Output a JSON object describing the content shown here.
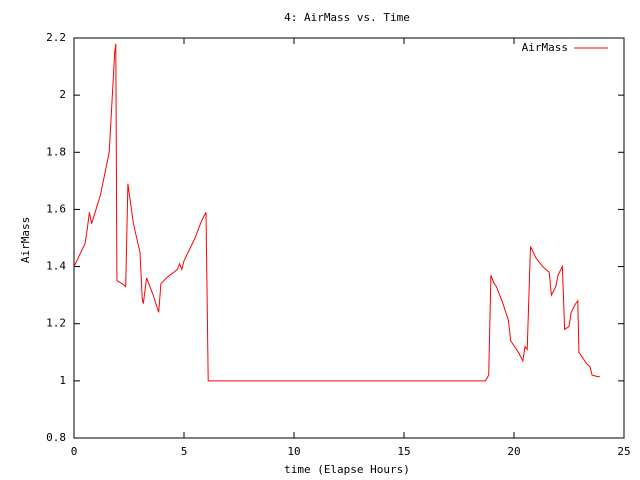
{
  "chart_data": {
    "type": "line",
    "title": "4: AirMass vs. Time",
    "xlabel": "time (Elapse Hours)",
    "ylabel": "AirMass",
    "xlim": [
      0,
      25
    ],
    "xticks": [
      0,
      5,
      10,
      15,
      20,
      25
    ],
    "ylim": [
      0.8,
      2.2
    ],
    "yticks": [
      0.8,
      1,
      1.2,
      1.4,
      1.6,
      1.8,
      2,
      2.2
    ],
    "legend": "top-right",
    "x": [
      0,
      0.5,
      0.6,
      0.7,
      0.8,
      1.0,
      1.2,
      1.6,
      1.85,
      1.9,
      1.95,
      2.2,
      2.35,
      2.45,
      2.7,
      3.0,
      3.1,
      3.15,
      3.3,
      3.6,
      3.85,
      3.95,
      4.2,
      4.7,
      4.8,
      4.9,
      5.0,
      5.5,
      5.8,
      6.0,
      6.1,
      18.7,
      18.85,
      18.95,
      19.1,
      19.2,
      19.5,
      19.75,
      19.85,
      20.2,
      20.4,
      20.5,
      20.6,
      20.75,
      21.0,
      21.3,
      21.6,
      21.7,
      21.9,
      22.0,
      22.2,
      22.3,
      22.5,
      22.6,
      22.8,
      22.9,
      22.95,
      23.3,
      23.45,
      23.55,
      23.8,
      23.9
    ],
    "series": [
      {
        "name": "AirMass",
        "color": "#ff0000",
        "values": [
          1.4,
          1.48,
          1.53,
          1.59,
          1.55,
          1.6,
          1.65,
          1.8,
          2.15,
          2.18,
          1.35,
          1.34,
          1.33,
          1.69,
          1.55,
          1.45,
          1.29,
          1.27,
          1.36,
          1.3,
          1.24,
          1.34,
          1.36,
          1.39,
          1.41,
          1.39,
          1.42,
          1.5,
          1.56,
          1.59,
          1.0,
          1.0,
          1.02,
          1.37,
          1.34,
          1.33,
          1.27,
          1.21,
          1.14,
          1.1,
          1.07,
          1.12,
          1.11,
          1.47,
          1.43,
          1.4,
          1.38,
          1.3,
          1.33,
          1.37,
          1.4,
          1.18,
          1.19,
          1.24,
          1.27,
          1.28,
          1.1,
          1.06,
          1.05,
          1.02,
          1.015,
          1.015
        ]
      }
    ]
  }
}
